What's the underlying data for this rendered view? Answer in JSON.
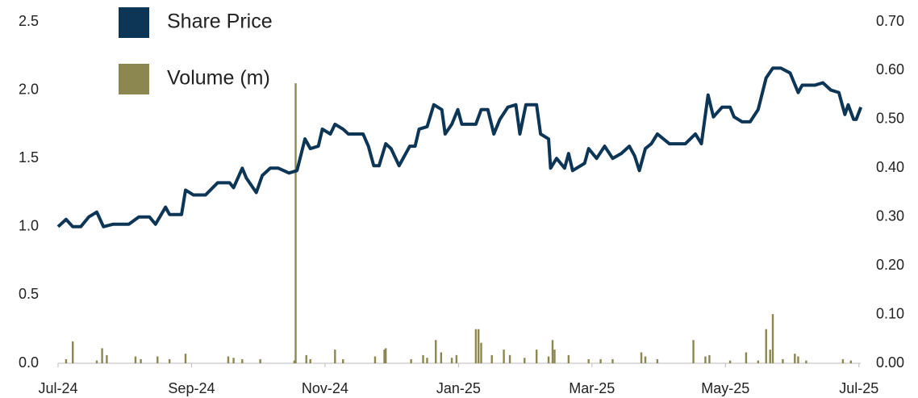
{
  "chart_data": {
    "type": "bar-line",
    "xlim": [
      0,
      12.1
    ],
    "xticks": [
      {
        "value": 0,
        "label": "Jul-24"
      },
      {
        "value": 2,
        "label": "Sep-24"
      },
      {
        "value": 4,
        "label": "Nov-24"
      },
      {
        "value": 6,
        "label": "Jan-25"
      },
      {
        "value": 8,
        "label": "Mar-25"
      },
      {
        "value": 10,
        "label": "May-25"
      },
      {
        "value": 12,
        "label": "Jul-25"
      }
    ],
    "ylim": [
      0,
      2.5
    ],
    "yticks": [
      {
        "value": 0,
        "label": "0.0"
      },
      {
        "value": 0.5,
        "label": "0.5"
      },
      {
        "value": 1,
        "label": "1.0"
      },
      {
        "value": 1.5,
        "label": "1.5"
      },
      {
        "value": 2,
        "label": "2.0"
      },
      {
        "value": 2.5,
        "label": "2.5"
      }
    ],
    "y2lim": [
      0,
      0.7
    ],
    "y2ticks": [
      {
        "value": 0,
        "label": "0.00"
      },
      {
        "value": 0.1,
        "label": "0.10"
      },
      {
        "value": 0.2,
        "label": "0.20"
      },
      {
        "value": 0.3,
        "label": "0.30"
      },
      {
        "value": 0.4,
        "label": "0.40"
      },
      {
        "value": 0.5,
        "label": "0.50"
      },
      {
        "value": 0.6,
        "label": "0.60"
      },
      {
        "value": 0.7,
        "label": "0.70"
      }
    ],
    "series": [
      {
        "name": "Share Price",
        "type": "line",
        "axis": "y2",
        "color": "#0d3556",
        "x": [
          0,
          0.12,
          0.22,
          0.34,
          0.46,
          0.58,
          0.68,
          0.82,
          1.06,
          1.21,
          1.37,
          1.46,
          1.61,
          1.67,
          1.85,
          1.91,
          2.03,
          2.21,
          2.39,
          2.57,
          2.63,
          2.76,
          2.82,
          2.97,
          3.06,
          3.18,
          3.3,
          3.46,
          3.58,
          3.7,
          3.78,
          3.9,
          3.96,
          4.08,
          4.15,
          4.27,
          4.35,
          4.57,
          4.65,
          4.73,
          4.81,
          4.91,
          4.99,
          5.11,
          5.27,
          5.35,
          5.41,
          5.53,
          5.63,
          5.75,
          5.8,
          5.9,
          5.99,
          6.05,
          6.26,
          6.34,
          6.44,
          6.53,
          6.62,
          6.74,
          6.86,
          6.92,
          7.01,
          7.17,
          7.23,
          7.35,
          7.38,
          7.47,
          7.59,
          7.65,
          7.71,
          7.89,
          7.95,
          8.07,
          8.19,
          8.31,
          8.44,
          8.56,
          8.64,
          8.71,
          8.8,
          8.89,
          8.98,
          9.16,
          9.4,
          9.55,
          9.64,
          9.74,
          9.82,
          9.95,
          10.07,
          10.13,
          10.25,
          10.37,
          10.49,
          10.61,
          10.71,
          10.83,
          10.97,
          11.09,
          11.15,
          11.34,
          11.46,
          11.58,
          11.7,
          11.79,
          11.84,
          11.92,
          11.96,
          12.03
        ],
        "values": [
          0.28,
          0.295,
          0.28,
          0.28,
          0.3,
          0.31,
          0.28,
          0.285,
          0.285,
          0.3,
          0.3,
          0.285,
          0.32,
          0.305,
          0.305,
          0.355,
          0.345,
          0.345,
          0.37,
          0.37,
          0.36,
          0.4,
          0.38,
          0.35,
          0.385,
          0.4,
          0.4,
          0.39,
          0.395,
          0.46,
          0.44,
          0.445,
          0.48,
          0.47,
          0.49,
          0.48,
          0.47,
          0.47,
          0.445,
          0.405,
          0.405,
          0.45,
          0.44,
          0.405,
          0.445,
          0.445,
          0.48,
          0.485,
          0.53,
          0.52,
          0.47,
          0.49,
          0.52,
          0.49,
          0.49,
          0.52,
          0.52,
          0.47,
          0.5,
          0.525,
          0.53,
          0.47,
          0.53,
          0.53,
          0.47,
          0.46,
          0.4,
          0.42,
          0.4,
          0.43,
          0.395,
          0.41,
          0.44,
          0.42,
          0.445,
          0.42,
          0.43,
          0.445,
          0.425,
          0.395,
          0.44,
          0.45,
          0.47,
          0.45,
          0.45,
          0.47,
          0.45,
          0.55,
          0.505,
          0.525,
          0.525,
          0.505,
          0.495,
          0.495,
          0.52,
          0.585,
          0.605,
          0.605,
          0.595,
          0.555,
          0.57,
          0.57,
          0.575,
          0.56,
          0.555,
          0.51,
          0.53,
          0.5,
          0.5,
          0.525
        ]
      },
      {
        "name": "Volume (m)",
        "type": "bar",
        "axis": "y",
        "color": "#8c8750",
        "x": [
          0.12,
          0.22,
          0.58,
          0.66,
          0.73,
          1.16,
          1.24,
          1.49,
          1.67,
          1.91,
          2.55,
          2.63,
          2.76,
          3.03,
          3.54,
          3.56,
          3.72,
          3.78,
          4.15,
          4.27,
          4.75,
          4.89,
          4.91,
          5.29,
          5.47,
          5.53,
          5.66,
          5.74,
          5.9,
          5.97,
          6.26,
          6.3,
          6.34,
          6.5,
          6.68,
          6.77,
          6.99,
          7.17,
          7.35,
          7.41,
          7.44,
          7.65,
          7.95,
          8.13,
          8.31,
          8.74,
          8.8,
          8.98,
          9.52,
          9.7,
          9.76,
          10.07,
          10.31,
          10.49,
          10.61,
          10.67,
          10.71,
          10.86,
          11.04,
          11.09,
          11.21,
          11.76,
          11.88
        ],
        "values": [
          0.03,
          0.16,
          0.02,
          0.11,
          0.06,
          0.05,
          0.03,
          0.05,
          0.03,
          0.07,
          0.05,
          0.04,
          0.03,
          0.03,
          0.02,
          2.05,
          0.06,
          0.03,
          0.1,
          0.03,
          0.05,
          0.1,
          0.11,
          0.03,
          0.06,
          0.04,
          0.17,
          0.08,
          0.04,
          0.06,
          0.25,
          0.25,
          0.15,
          0.06,
          0.1,
          0.06,
          0.04,
          0.1,
          0.05,
          0.17,
          0.1,
          0.06,
          0.03,
          0.03,
          0.03,
          0.08,
          0.05,
          0.03,
          0.17,
          0.05,
          0.06,
          0.02,
          0.08,
          0.02,
          0.25,
          0.1,
          0.36,
          0.03,
          0.07,
          0.05,
          0.02,
          0.03,
          0.02
        ]
      }
    ]
  }
}
